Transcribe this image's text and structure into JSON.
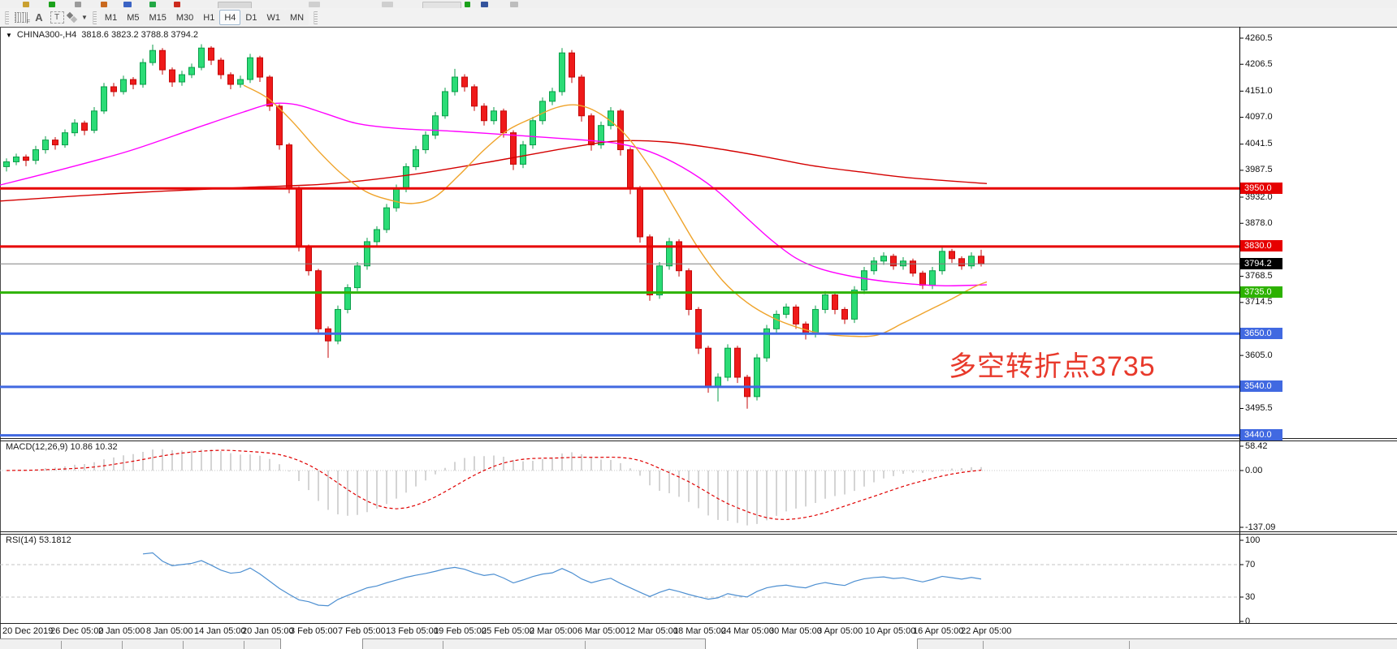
{
  "toolbar": {
    "tools": {
      "crosshair_grid": "F",
      "text_a": "A",
      "text_box": "T"
    },
    "timeframes": [
      "M1",
      "M5",
      "M15",
      "M30",
      "H1",
      "H4",
      "D1",
      "W1",
      "MN"
    ],
    "active_timeframe": "H4"
  },
  "chart_header": {
    "symbol": "CHINA300-,H4",
    "ohlc_text": "3818.6 3823.2 3788.8 3794.2"
  },
  "panels": {
    "macd_label": "MACD(12,26,9) 10.86 10.32",
    "rsi_label": "RSI(14) 53.1812"
  },
  "chart_data": {
    "type": "candlestick",
    "symbol": "CHINA300-",
    "timeframe": "H4",
    "current_ohlc": {
      "open": 3818.6,
      "high": 3823.2,
      "low": 3788.8,
      "close": 3794.2
    },
    "y_ticks": [
      4260.5,
      4206.5,
      4151.0,
      4097.0,
      4041.5,
      3987.5,
      3932.0,
      3878.0,
      3768.5,
      3714.5,
      3605.0,
      3495.5
    ],
    "x_labels": [
      "20 Dec 2019",
      "26 Dec 05:00",
      "2 Jan 05:00",
      "8 Jan 05:00",
      "14 Jan 05:00",
      "20 Jan 05:00",
      "3 Feb 05:00",
      "7 Feb 05:00",
      "13 Feb 05:00",
      "19 Feb 05:00",
      "25 Feb 05:00",
      "2 Mar 05:00",
      "6 Mar 05:00",
      "12 Mar 05:00",
      "18 Mar 05:00",
      "24 Mar 05:00",
      "30 Mar 05:00",
      "3 Apr 05:00",
      "10 Apr 05:00",
      "16 Apr 05:00",
      "22 Apr 05:00"
    ],
    "levels": [
      {
        "price": 3950.0,
        "label": "3950.0",
        "color": "#e60000",
        "type": "hline"
      },
      {
        "price": 3830.0,
        "label": "3830.0",
        "color": "#e60000",
        "type": "hline"
      },
      {
        "price": 3794.2,
        "label": "3794.2",
        "color": "#000000",
        "type": "current"
      },
      {
        "price": 3735.0,
        "label": "3735.0",
        "color": "#2db200",
        "type": "hline"
      },
      {
        "price": 3650.0,
        "label": "3650.0",
        "color": "#4169e1",
        "type": "hline"
      },
      {
        "price": 3540.0,
        "label": "3540.0",
        "color": "#4169e1",
        "type": "hline"
      },
      {
        "price": 3440.0,
        "label": "3440.0",
        "color": "#4169e1",
        "type": "hline"
      }
    ],
    "candles": [
      [
        3995,
        4012,
        3985,
        4005
      ],
      [
        4005,
        4022,
        3998,
        4015
      ],
      [
        4015,
        4020,
        3996,
        4008
      ],
      [
        4008,
        4038,
        4000,
        4030
      ],
      [
        4030,
        4058,
        4022,
        4050
      ],
      [
        4050,
        4056,
        4030,
        4040
      ],
      [
        4040,
        4072,
        4034,
        4065
      ],
      [
        4065,
        4093,
        4058,
        4085
      ],
      [
        4085,
        4090,
        4060,
        4070
      ],
      [
        4070,
        4118,
        4064,
        4110
      ],
      [
        4110,
        4168,
        4104,
        4160
      ],
      [
        4160,
        4168,
        4140,
        4150
      ],
      [
        4150,
        4183,
        4144,
        4175
      ],
      [
        4175,
        4180,
        4155,
        4165
      ],
      [
        4165,
        4218,
        4158,
        4210
      ],
      [
        4210,
        4247,
        4204,
        4235
      ],
      [
        4235,
        4240,
        4185,
        4195
      ],
      [
        4195,
        4200,
        4160,
        4170
      ],
      [
        4170,
        4193,
        4162,
        4185
      ],
      [
        4185,
        4208,
        4178,
        4200
      ],
      [
        4200,
        4248,
        4194,
        4240
      ],
      [
        4240,
        4244,
        4205,
        4215
      ],
      [
        4215,
        4220,
        4176,
        4185
      ],
      [
        4185,
        4190,
        4155,
        4165
      ],
      [
        4165,
        4183,
        4158,
        4175
      ],
      [
        4175,
        4228,
        4168,
        4220
      ],
      [
        4220,
        4224,
        4170,
        4180
      ],
      [
        4180,
        4184,
        4110,
        4120
      ],
      [
        4120,
        4124,
        4030,
        4040
      ],
      [
        4040,
        4044,
        3940,
        3950
      ],
      [
        3950,
        3954,
        3820,
        3830
      ],
      [
        3830,
        3834,
        3770,
        3780
      ],
      [
        3780,
        3784,
        3648,
        3660
      ],
      [
        3660,
        3665,
        3600,
        3635
      ],
      [
        3635,
        3708,
        3628,
        3700
      ],
      [
        3700,
        3752,
        3692,
        3745
      ],
      [
        3745,
        3798,
        3738,
        3790
      ],
      [
        3790,
        3848,
        3782,
        3840
      ],
      [
        3840,
        3872,
        3830,
        3865
      ],
      [
        3865,
        3918,
        3858,
        3910
      ],
      [
        3910,
        3958,
        3902,
        3950
      ],
      [
        3950,
        4002,
        3942,
        3995
      ],
      [
        3995,
        4038,
        3988,
        4030
      ],
      [
        4030,
        4068,
        4022,
        4060
      ],
      [
        4060,
        4108,
        4052,
        4100
      ],
      [
        4100,
        4158,
        4094,
        4150
      ],
      [
        4150,
        4197,
        4142,
        4180
      ],
      [
        4180,
        4186,
        4150,
        4160
      ],
      [
        4160,
        4165,
        4110,
        4120
      ],
      [
        4120,
        4126,
        4080,
        4090
      ],
      [
        4090,
        4118,
        4082,
        4110
      ],
      [
        4110,
        4115,
        4055,
        4065
      ],
      [
        4065,
        4070,
        3988,
        4000
      ],
      [
        4000,
        4048,
        3992,
        4040
      ],
      [
        4040,
        4098,
        4032,
        4090
      ],
      [
        4090,
        4138,
        4082,
        4130
      ],
      [
        4130,
        4158,
        4122,
        4150
      ],
      [
        4150,
        4240,
        4142,
        4230
      ],
      [
        4230,
        4236,
        4168,
        4180
      ],
      [
        4180,
        4185,
        4088,
        4100
      ],
      [
        4100,
        4105,
        4028,
        4040
      ],
      [
        4040,
        4088,
        4032,
        4080
      ],
      [
        4080,
        4118,
        4072,
        4110
      ],
      [
        4110,
        4114,
        4018,
        4030
      ],
      [
        4030,
        4035,
        3938,
        3950
      ],
      [
        3950,
        3955,
        3838,
        3850
      ],
      [
        3850,
        3855,
        3718,
        3730
      ],
      [
        3730,
        3798,
        3722,
        3790
      ],
      [
        3790,
        3848,
        3782,
        3840
      ],
      [
        3840,
        3845,
        3768,
        3780
      ],
      [
        3780,
        3785,
        3688,
        3700
      ],
      [
        3700,
        3705,
        3608,
        3620
      ],
      [
        3620,
        3625,
        3528,
        3540
      ],
      [
        3540,
        3568,
        3510,
        3560
      ],
      [
        3560,
        3628,
        3552,
        3620
      ],
      [
        3620,
        3625,
        3548,
        3560
      ],
      [
        3560,
        3565,
        3495,
        3520
      ],
      [
        3520,
        3608,
        3512,
        3600
      ],
      [
        3600,
        3668,
        3592,
        3660
      ],
      [
        3660,
        3698,
        3652,
        3690
      ],
      [
        3690,
        3712,
        3682,
        3705
      ],
      [
        3705,
        3710,
        3660,
        3670
      ],
      [
        3670,
        3675,
        3638,
        3650
      ],
      [
        3650,
        3708,
        3642,
        3700
      ],
      [
        3700,
        3738,
        3692,
        3730
      ],
      [
        3730,
        3735,
        3690,
        3700
      ],
      [
        3700,
        3705,
        3670,
        3680
      ],
      [
        3680,
        3748,
        3672,
        3740
      ],
      [
        3740,
        3788,
        3732,
        3780
      ],
      [
        3780,
        3808,
        3772,
        3800
      ],
      [
        3800,
        3818,
        3792,
        3810
      ],
      [
        3810,
        3815,
        3782,
        3790
      ],
      [
        3790,
        3808,
        3782,
        3800
      ],
      [
        3800,
        3805,
        3768,
        3775
      ],
      [
        3775,
        3780,
        3742,
        3750
      ],
      [
        3750,
        3788,
        3742,
        3780
      ],
      [
        3780,
        3828,
        3772,
        3820
      ],
      [
        3820,
        3825,
        3796,
        3805
      ],
      [
        3805,
        3810,
        3782,
        3790
      ],
      [
        3790,
        3818,
        3784,
        3810
      ],
      [
        3810,
        3823.2,
        3788.8,
        3794.2
      ]
    ],
    "moving_averages": [
      {
        "name": "slow-ma",
        "color": "#d40000",
        "points": [
          [
            0,
            3924
          ],
          [
            150,
            3940
          ],
          [
            300,
            3952
          ],
          [
            400,
            3959
          ],
          [
            500,
            3977
          ],
          [
            600,
            4004
          ],
          [
            700,
            4034
          ],
          [
            760,
            4048
          ],
          [
            820,
            4046
          ],
          [
            880,
            4033
          ],
          [
            940,
            4016
          ],
          [
            1000,
            3997
          ],
          [
            1060,
            3984
          ],
          [
            1120,
            3972
          ],
          [
            1215,
            3960
          ]
        ]
      },
      {
        "name": "mid-ma",
        "color": "#ff00ff",
        "points": [
          [
            0,
            3957
          ],
          [
            80,
            3991
          ],
          [
            160,
            4028
          ],
          [
            240,
            4074
          ],
          [
            300,
            4108
          ],
          [
            335,
            4125
          ],
          [
            365,
            4123
          ],
          [
            400,
            4105
          ],
          [
            440,
            4084
          ],
          [
            490,
            4074
          ],
          [
            560,
            4068
          ],
          [
            640,
            4059
          ],
          [
            710,
            4051
          ],
          [
            760,
            4043
          ],
          [
            800,
            4026
          ],
          [
            840,
            3994
          ],
          [
            880,
            3949
          ],
          [
            920,
            3888
          ],
          [
            950,
            3843
          ],
          [
            980,
            3806
          ],
          [
            1010,
            3784
          ],
          [
            1050,
            3768
          ],
          [
            1100,
            3756
          ],
          [
            1160,
            3749
          ],
          [
            1215,
            3751
          ]
        ]
      },
      {
        "name": "fast-ma",
        "color": "#efa32a",
        "points": [
          [
            300,
            4163
          ],
          [
            330,
            4136
          ],
          [
            360,
            4088
          ],
          [
            390,
            4031
          ],
          [
            420,
            3981
          ],
          [
            450,
            3944
          ],
          [
            480,
            3926
          ],
          [
            508,
            3919
          ],
          [
            535,
            3932
          ],
          [
            565,
            3977
          ],
          [
            595,
            4028
          ],
          [
            625,
            4070
          ],
          [
            655,
            4095
          ],
          [
            685,
            4117
          ],
          [
            712,
            4122
          ],
          [
            740,
            4103
          ],
          [
            770,
            4061
          ],
          [
            800,
            3994
          ],
          [
            830,
            3910
          ],
          [
            860,
            3826
          ],
          [
            890,
            3759
          ],
          [
            920,
            3714
          ],
          [
            950,
            3684
          ],
          [
            980,
            3664
          ],
          [
            1012,
            3650
          ],
          [
            1045,
            3645
          ],
          [
            1080,
            3647
          ],
          [
            1112,
            3672
          ],
          [
            1142,
            3697
          ],
          [
            1172,
            3722
          ],
          [
            1200,
            3747
          ],
          [
            1215,
            3757
          ]
        ]
      }
    ],
    "indicators": {
      "macd": {
        "params": [
          12,
          26,
          9
        ],
        "values": [
          10.86,
          10.32
        ],
        "scale_labels": [
          "58.42",
          "0.00",
          "-137.09"
        ]
      },
      "rsi": {
        "period": 14,
        "value": 53.1812,
        "scale_labels": [
          "100",
          "70",
          "30",
          "0"
        ],
        "dashed_levels": [
          70,
          30
        ]
      }
    },
    "annotation": {
      "text": "多空转折点3735",
      "color": "#e8392b",
      "x": 1168,
      "y": 424,
      "size": 34
    }
  }
}
